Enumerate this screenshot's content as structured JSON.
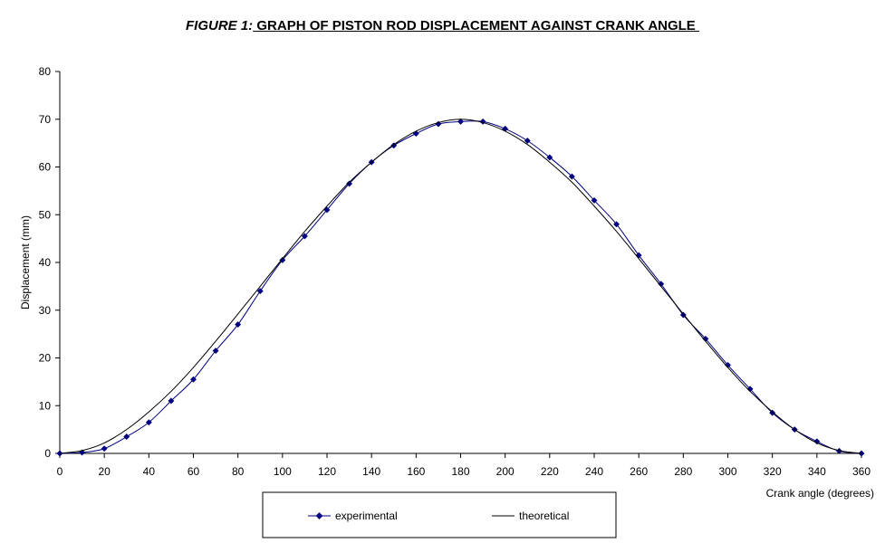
{
  "title_prefix": "FIGURE 1:",
  "title_main": " GRAPH OF PISTON ROD DISPLACEMENT AGAINST CRANK ANGLE ",
  "chart_data": {
    "type": "line",
    "xlabel": "Crank angle (degrees)",
    "ylabel": "Displacement (mm)",
    "xlim": [
      0,
      360
    ],
    "ylim": [
      0,
      80
    ],
    "x_ticks": [
      0,
      20,
      40,
      60,
      80,
      100,
      120,
      140,
      160,
      180,
      200,
      220,
      240,
      260,
      280,
      300,
      320,
      340,
      360
    ],
    "y_ticks": [
      0,
      10,
      20,
      30,
      40,
      50,
      60,
      70,
      80
    ],
    "grid": false,
    "legend_position": "bottom",
    "series": [
      {
        "name": "experimental",
        "color": "#000080",
        "marker": "diamond",
        "x": [
          0,
          10,
          20,
          30,
          40,
          50,
          60,
          70,
          80,
          90,
          100,
          110,
          120,
          130,
          140,
          150,
          160,
          170,
          180,
          190,
          200,
          210,
          220,
          230,
          240,
          250,
          260,
          270,
          280,
          290,
          300,
          310,
          320,
          330,
          340,
          350,
          360
        ],
        "y": [
          0,
          0.2,
          1.0,
          3.5,
          6.5,
          11.0,
          15.5,
          21.5,
          27.0,
          34.0,
          40.5,
          45.5,
          51.0,
          56.5,
          61.0,
          64.5,
          67.0,
          69.0,
          69.5,
          69.5,
          68.0,
          65.5,
          62.0,
          58.0,
          53.0,
          48.0,
          41.5,
          35.5,
          29.0,
          24.0,
          18.5,
          13.5,
          8.5,
          5.0,
          2.5,
          0.5,
          0
        ]
      },
      {
        "name": "theoretical",
        "color": "#000000",
        "marker": "none",
        "x": [
          0,
          10,
          20,
          30,
          40,
          50,
          60,
          70,
          80,
          90,
          100,
          110,
          120,
          130,
          140,
          150,
          160,
          170,
          180,
          190,
          200,
          210,
          220,
          230,
          240,
          250,
          260,
          270,
          280,
          290,
          300,
          310,
          320,
          330,
          340,
          350,
          360
        ],
        "y": [
          0,
          0.6,
          2.2,
          5.0,
          8.7,
          13.0,
          18.0,
          23.5,
          29.2,
          35.0,
          40.8,
          46.5,
          51.8,
          56.8,
          61.0,
          64.7,
          67.5,
          69.3,
          70.0,
          69.3,
          67.5,
          64.7,
          61.0,
          56.8,
          51.8,
          46.5,
          40.8,
          35.0,
          29.2,
          23.5,
          18.0,
          13.0,
          8.7,
          5.0,
          2.2,
          0.6,
          0
        ]
      }
    ]
  }
}
